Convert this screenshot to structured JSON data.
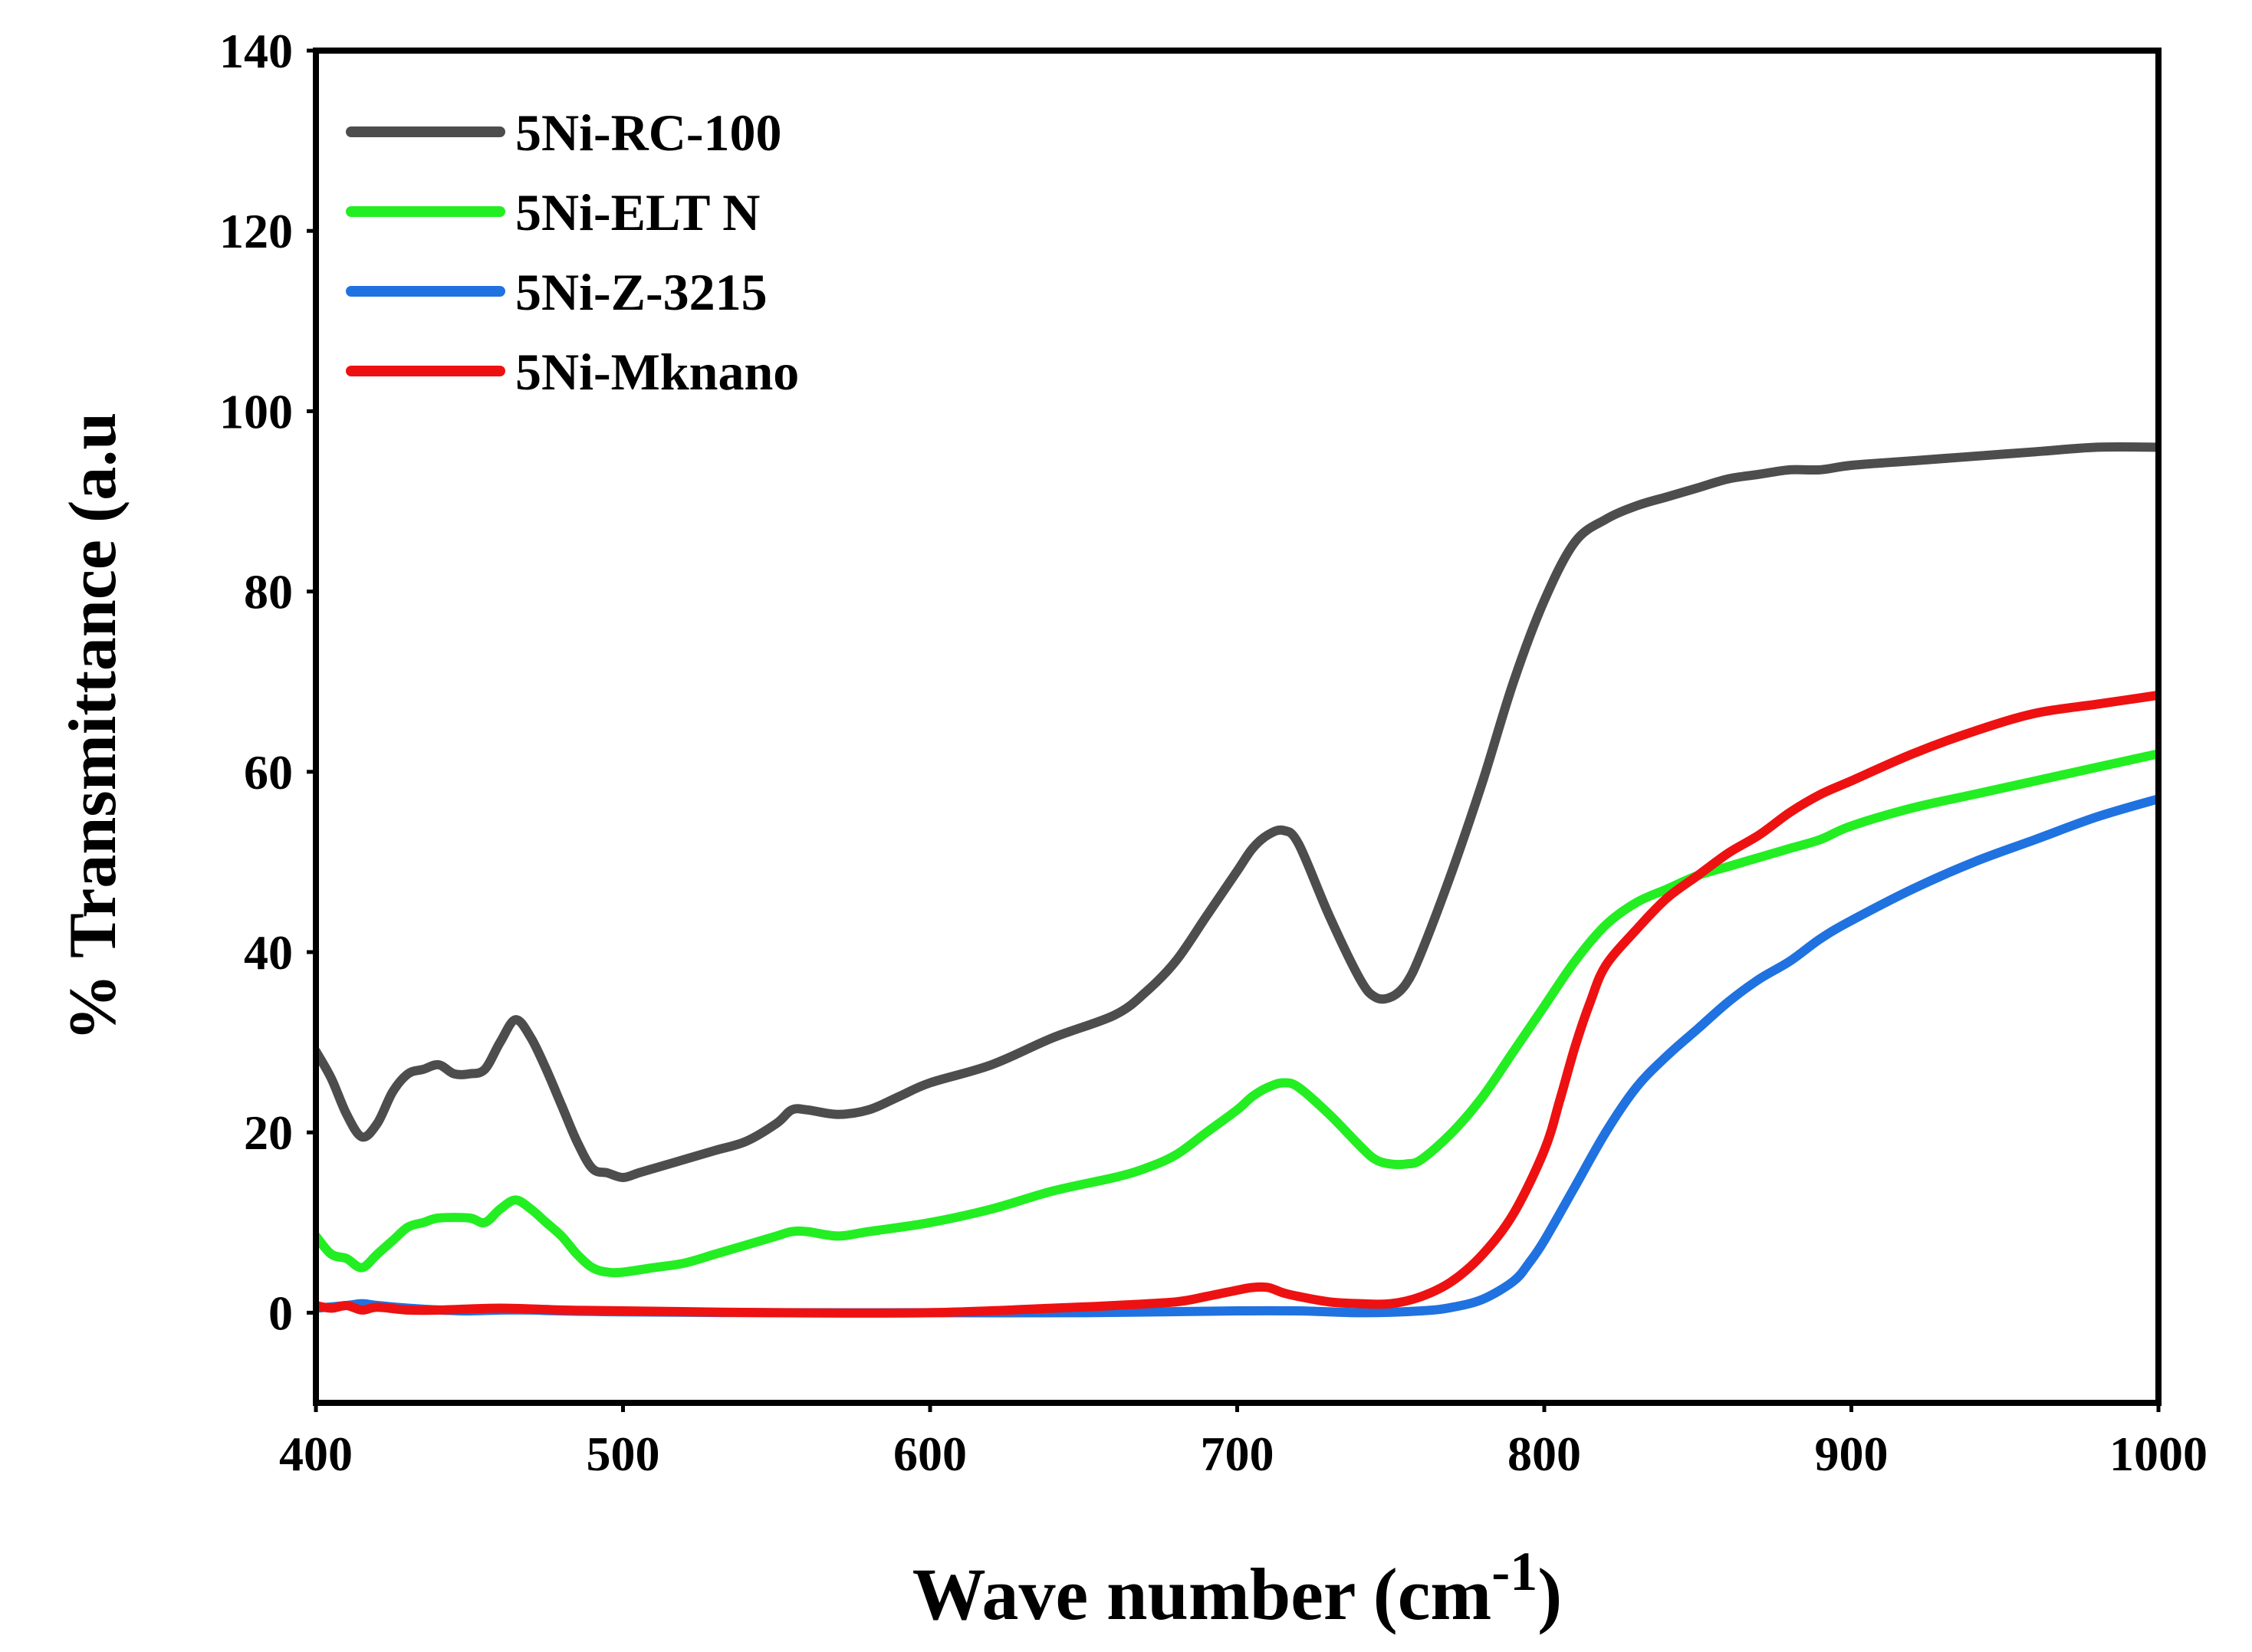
{
  "chart_data": {
    "type": "line",
    "title": "",
    "xlabel": "Wave number (cm",
    "xlabel_superscript": "-1",
    "xlabel_close": ")",
    "ylabel": "% Transmittance (a.u",
    "xlim": [
      400,
      1000
    ],
    "ylim": [
      -10,
      140
    ],
    "xticks": [
      400,
      500,
      600,
      700,
      800,
      900,
      1000
    ],
    "yticks": [
      0,
      20,
      40,
      60,
      80,
      100,
      120,
      140
    ],
    "legend_position": "top-left",
    "series": [
      {
        "name": "5Ni-RC-100",
        "color": "#4d4d4d",
        "x": [
          400,
          405,
          410,
          415,
          420,
          425,
          430,
          435,
          440,
          445,
          450,
          455,
          460,
          465,
          470,
          475,
          480,
          485,
          490,
          495,
          500,
          505,
          510,
          520,
          530,
          540,
          550,
          555,
          560,
          570,
          580,
          590,
          600,
          620,
          640,
          660,
          670,
          680,
          690,
          700,
          705,
          710,
          715,
          720,
          730,
          740,
          745,
          750,
          755,
          760,
          770,
          780,
          790,
          800,
          810,
          820,
          830,
          840,
          850,
          860,
          870,
          880,
          890,
          900,
          920,
          940,
          960,
          980,
          1000
        ],
        "y": [
          29,
          26,
          22,
          19.5,
          21,
          24.5,
          26.5,
          27,
          27.5,
          26.5,
          26.5,
          27,
          30,
          32.5,
          30.5,
          27,
          23,
          19,
          16,
          15.5,
          15,
          15.5,
          16,
          17,
          18,
          19,
          21,
          22.5,
          22.5,
          22,
          22.5,
          24,
          25.5,
          27.5,
          30.5,
          33,
          35.5,
          39,
          44,
          49,
          51.5,
          53,
          53.5,
          52,
          44,
          37,
          35,
          35,
          36.5,
          40,
          49,
          59,
          70,
          79,
          85.5,
          88,
          89.5,
          90.5,
          91.5,
          92.5,
          93,
          93.5,
          93.5,
          94,
          94.5,
          95,
          95.5,
          96,
          96
        ]
      },
      {
        "name": "5Ni-ELT N",
        "color": "#22ee22",
        "x": [
          400,
          405,
          410,
          415,
          420,
          425,
          430,
          435,
          440,
          450,
          455,
          460,
          465,
          470,
          475,
          480,
          485,
          490,
          495,
          500,
          510,
          520,
          530,
          540,
          550,
          555,
          560,
          570,
          580,
          600,
          620,
          640,
          660,
          670,
          680,
          690,
          700,
          705,
          710,
          715,
          720,
          730,
          740,
          745,
          750,
          755,
          760,
          770,
          780,
          790,
          800,
          810,
          820,
          830,
          840,
          850,
          860,
          870,
          880,
          890,
          900,
          920,
          940,
          960,
          980,
          1000
        ],
        "y": [
          8.5,
          6.5,
          6,
          5,
          6.5,
          8,
          9.5,
          10,
          10.5,
          10.5,
          10,
          11.5,
          12.5,
          11.5,
          10,
          8.5,
          6.5,
          5,
          4.5,
          4.5,
          5,
          5.5,
          6.5,
          7.5,
          8.5,
          9,
          9,
          8.5,
          9,
          10,
          11.5,
          13.5,
          15,
          16,
          17.5,
          20,
          22.5,
          24,
          25,
          25.5,
          25,
          22,
          18.5,
          17,
          16.5,
          16.5,
          17,
          20,
          24,
          29,
          34,
          39,
          43,
          45.5,
          47,
          48.5,
          49.5,
          50.5,
          51.5,
          52.5,
          54,
          56,
          57.5,
          59,
          60.5,
          62
        ]
      },
      {
        "name": "5Ni-Z-3215",
        "color": "#1f72e0",
        "x": [
          400,
          410,
          415,
          420,
          430,
          440,
          450,
          460,
          470,
          480,
          500,
          550,
          600,
          650,
          700,
          720,
          740,
          760,
          770,
          780,
          790,
          795,
          800,
          810,
          820,
          830,
          840,
          850,
          860,
          870,
          880,
          890,
          900,
          920,
          940,
          960,
          980,
          1000
        ],
        "y": [
          0.5,
          0.8,
          1,
          0.8,
          0.5,
          0.3,
          0.2,
          0.3,
          0.3,
          0.2,
          0.1,
          0,
          0,
          0,
          0.2,
          0.2,
          0,
          0.2,
          0.6,
          1.5,
          3.5,
          5.5,
          8,
          14,
          20,
          25,
          28.5,
          31.5,
          34.5,
          37,
          39,
          41.5,
          43.5,
          47,
          50,
          52.5,
          55,
          57
        ]
      },
      {
        "name": "5Ni-Mknano",
        "color": "#ee1111",
        "x": [
          400,
          405,
          410,
          415,
          420,
          430,
          440,
          460,
          480,
          500,
          550,
          600,
          640,
          660,
          680,
          690,
          700,
          705,
          710,
          715,
          720,
          730,
          740,
          750,
          760,
          770,
          780,
          790,
          800,
          805,
          810,
          815,
          820,
          830,
          840,
          850,
          860,
          870,
          880,
          890,
          900,
          920,
          940,
          960,
          980,
          1000
        ],
        "y": [
          0.8,
          0.5,
          0.8,
          0.3,
          0.6,
          0.3,
          0.3,
          0.5,
          0.3,
          0.2,
          0,
          0,
          0.5,
          0.8,
          1.2,
          1.8,
          2.5,
          2.8,
          2.8,
          2.2,
          1.8,
          1.2,
          1,
          1,
          1.8,
          3.5,
          6.5,
          11,
          18,
          23.5,
          29.5,
          34.5,
          38.5,
          42.5,
          46,
          48.5,
          51,
          53,
          55.5,
          57.5,
          59,
          62,
          64.5,
          66.5,
          67.5,
          68.5
        ]
      }
    ]
  }
}
